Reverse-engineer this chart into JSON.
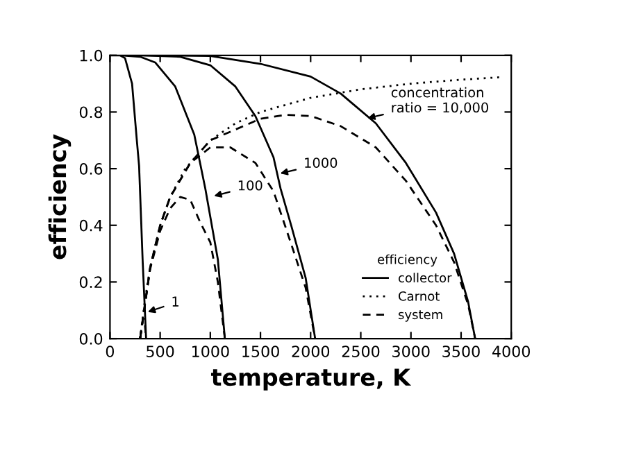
{
  "chart_data": {
    "type": "line",
    "xlabel": "temperature, K",
    "ylabel": "efficiency",
    "xlim": [
      0,
      4000
    ],
    "ylim": [
      0,
      1.0
    ],
    "xticks": [
      0,
      500,
      1000,
      1500,
      2000,
      2500,
      3000,
      3500,
      4000
    ],
    "yticks": [
      {
        "value": 0,
        "label": "0.0"
      },
      {
        "value": 0.2,
        "label": "0.2"
      },
      {
        "value": 0.4,
        "label": "0.4"
      },
      {
        "value": 0.6,
        "label": "0.6"
      },
      {
        "value": 0.8,
        "label": "0.8"
      },
      {
        "value": 1.0,
        "label": "1.0"
      }
    ],
    "grid": false,
    "legend": "bottom right",
    "legend_title": "efficiency",
    "marker": "none",
    "series": [
      {
        "name": "collector",
        "color": "#000000",
        "line_style": "solid",
        "x": [
          0,
          100,
          150,
          220,
          265,
          290,
          325,
          360
        ],
        "values": [
          1.0,
          1.0,
          0.99,
          0.9,
          0.71,
          0.61,
          0.28,
          0
        ]
      },
      {
        "color": "#000000",
        "line_style": "solid",
        "x": [
          100,
          300,
          450,
          650,
          840,
          950,
          1075,
          1145
        ],
        "values": [
          1.0,
          0.995,
          0.975,
          0.89,
          0.72,
          0.53,
          0.28,
          0
        ]
      },
      {
        "color": "#000000",
        "line_style": "solid",
        "x": [
          300,
          700,
          1000,
          1250,
          1450,
          1630,
          1700,
          1810,
          1950,
          2045
        ],
        "values": [
          1.0,
          0.995,
          0.965,
          0.89,
          0.785,
          0.64,
          0.53,
          0.395,
          0.215,
          0
        ]
      },
      {
        "color": "#000000",
        "line_style": "solid",
        "x": [
          300,
          1000,
          1500,
          2000,
          2300,
          2650,
          2950,
          3250,
          3430,
          3570,
          3640
        ],
        "values": [
          1.0,
          0.998,
          0.97,
          0.925,
          0.865,
          0.76,
          0.62,
          0.445,
          0.3,
          0.13,
          0
        ]
      },
      {
        "name": "Carnot",
        "color": "#000000",
        "line_style": "dotted",
        "x": [
          300,
          350,
          400,
          500,
          600,
          750,
          1000,
          1250,
          1500,
          2000,
          2500,
          3000,
          3500,
          3900
        ],
        "values": [
          0,
          0.14,
          0.25,
          0.4,
          0.5,
          0.6,
          0.7,
          0.76,
          0.8,
          0.85,
          0.88,
          0.9,
          0.914,
          0.923
        ]
      },
      {
        "name": "system",
        "color": "#000000",
        "line_style": "dashed",
        "x": [
          300,
          330,
          345,
          360
        ],
        "values": [
          0,
          0.07,
          0.06,
          0
        ]
      },
      {
        "color": "#000000",
        "line_style": "dashed",
        "x": [
          300,
          400,
          500,
          600,
          700,
          800,
          900,
          1000,
          1075,
          1145
        ],
        "values": [
          0,
          0.245,
          0.38,
          0.46,
          0.5,
          0.49,
          0.41,
          0.34,
          0.2,
          0
        ]
      },
      {
        "color": "#000000",
        "line_style": "dashed",
        "x": [
          300,
          400,
          500,
          600,
          800,
          1000,
          1200,
          1450,
          1630,
          1810,
          1950,
          2045
        ],
        "values": [
          0,
          0.25,
          0.4,
          0.5,
          0.62,
          0.675,
          0.675,
          0.62,
          0.52,
          0.33,
          0.18,
          0
        ]
      },
      {
        "color": "#000000",
        "line_style": "dashed",
        "x": [
          300,
          400,
          500,
          600,
          800,
          1000,
          1500,
          1750,
          2000,
          2300,
          2650,
          2950,
          3250,
          3430,
          3570,
          3640
        ],
        "values": [
          0,
          0.25,
          0.4,
          0.5,
          0.62,
          0.7,
          0.776,
          0.79,
          0.786,
          0.75,
          0.675,
          0.557,
          0.4,
          0.27,
          0.12,
          0
        ]
      }
    ],
    "annotations": [
      {
        "text": "concentration\nratio = 10,000",
        "x": 2530,
        "y": 0.775
      },
      {
        "text": "1000",
        "x": 1660,
        "y": 0.58
      },
      {
        "text": "100",
        "x": 1000,
        "y": 0.5
      },
      {
        "text": "1",
        "x": 340,
        "y": 0.09
      }
    ]
  }
}
